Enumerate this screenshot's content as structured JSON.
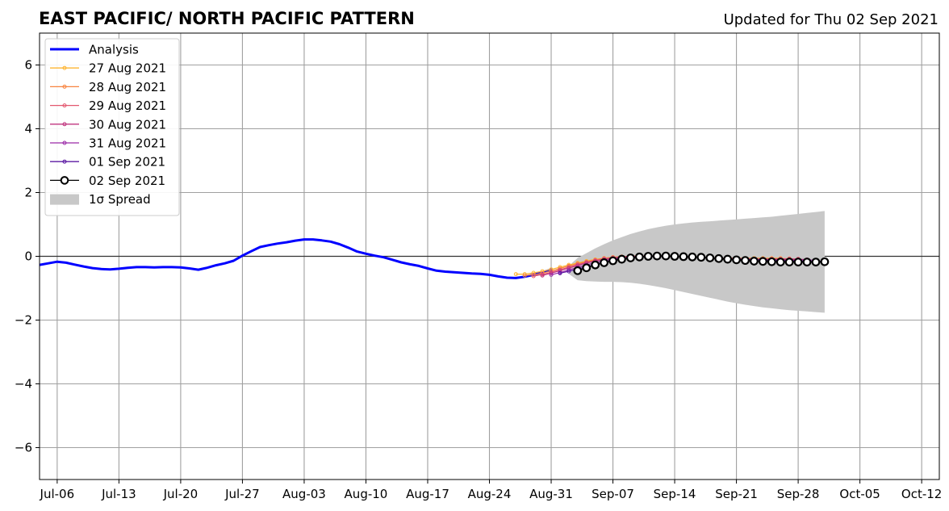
{
  "chart_data": {
    "type": "line",
    "title": "EAST PACIFIC/ NORTH PACIFIC PATTERN",
    "subtitle": "Updated for Thu 02 Sep 2021",
    "xlabel": "",
    "ylabel": "",
    "x_type": "date",
    "xlim": [
      "2021-07-04",
      "2021-10-14"
    ],
    "ylim": [
      -7,
      7
    ],
    "x_ticks": [
      {
        "date": "2021-07-06",
        "label": "Jul-06"
      },
      {
        "date": "2021-07-13",
        "label": "Jul-13"
      },
      {
        "date": "2021-07-20",
        "label": "Jul-20"
      },
      {
        "date": "2021-07-27",
        "label": "Jul-27"
      },
      {
        "date": "2021-08-03",
        "label": "Aug-03"
      },
      {
        "date": "2021-08-10",
        "label": "Aug-10"
      },
      {
        "date": "2021-08-17",
        "label": "Aug-17"
      },
      {
        "date": "2021-08-24",
        "label": "Aug-24"
      },
      {
        "date": "2021-08-31",
        "label": "Aug-31"
      },
      {
        "date": "2021-09-07",
        "label": "Sep-07"
      },
      {
        "date": "2021-09-14",
        "label": "Sep-14"
      },
      {
        "date": "2021-09-21",
        "label": "Sep-21"
      },
      {
        "date": "2021-09-28",
        "label": "Sep-28"
      },
      {
        "date": "2021-10-05",
        "label": "Oct-05"
      },
      {
        "date": "2021-10-12",
        "label": "Oct-12"
      }
    ],
    "y_ticks": [
      {
        "value": -6,
        "label": "−6"
      },
      {
        "value": -4,
        "label": "−4"
      },
      {
        "value": -2,
        "label": "−2"
      },
      {
        "value": 0,
        "label": "0"
      },
      {
        "value": 2,
        "label": "2"
      },
      {
        "value": 4,
        "label": "4"
      },
      {
        "value": 6,
        "label": "6"
      }
    ],
    "grid": true,
    "zero_line": 0,
    "legend_position": "top-left",
    "series": [
      {
        "name": "Analysis",
        "color": "#0000ff",
        "markers": false,
        "x": [
          "2021-07-04",
          "2021-07-05",
          "2021-07-06",
          "2021-07-07",
          "2021-07-08",
          "2021-07-09",
          "2021-07-10",
          "2021-07-11",
          "2021-07-12",
          "2021-07-13",
          "2021-07-14",
          "2021-07-15",
          "2021-07-16",
          "2021-07-17",
          "2021-07-18",
          "2021-07-19",
          "2021-07-20",
          "2021-07-21",
          "2021-07-22",
          "2021-07-23",
          "2021-07-24",
          "2021-07-25",
          "2021-07-26",
          "2021-07-27",
          "2021-07-28",
          "2021-07-29",
          "2021-07-30",
          "2021-07-31",
          "2021-08-01",
          "2021-08-02",
          "2021-08-03",
          "2021-08-04",
          "2021-08-05",
          "2021-08-06",
          "2021-08-07",
          "2021-08-08",
          "2021-08-09",
          "2021-08-10",
          "2021-08-11",
          "2021-08-12",
          "2021-08-13",
          "2021-08-14",
          "2021-08-15",
          "2021-08-16",
          "2021-08-17",
          "2021-08-18",
          "2021-08-19",
          "2021-08-20",
          "2021-08-21",
          "2021-08-22",
          "2021-08-23",
          "2021-08-24",
          "2021-08-25",
          "2021-08-26",
          "2021-08-27",
          "2021-08-28",
          "2021-08-29",
          "2021-08-30",
          "2021-08-31"
        ],
        "y": [
          -0.27,
          -0.22,
          -0.17,
          -0.2,
          -0.26,
          -0.32,
          -0.37,
          -0.4,
          -0.41,
          -0.39,
          -0.36,
          -0.34,
          -0.34,
          -0.35,
          -0.34,
          -0.34,
          -0.35,
          -0.38,
          -0.42,
          -0.36,
          -0.28,
          -0.22,
          -0.14,
          0.02,
          0.16,
          0.29,
          0.35,
          0.4,
          0.44,
          0.49,
          0.53,
          0.53,
          0.5,
          0.46,
          0.38,
          0.27,
          0.15,
          0.08,
          0.02,
          -0.03,
          -0.11,
          -0.19,
          -0.25,
          -0.3,
          -0.38,
          -0.45,
          -0.48,
          -0.5,
          -0.52,
          -0.54,
          -0.55,
          -0.58,
          -0.63,
          -0.67,
          -0.68,
          -0.64,
          -0.58,
          -0.5,
          -0.42
        ]
      },
      {
        "name": "27 Aug 2021",
        "color": "#fdb431",
        "markers": "small",
        "x": [
          "2021-08-27",
          "2021-08-28",
          "2021-08-29",
          "2021-08-30",
          "2021-08-31",
          "2021-09-01",
          "2021-09-02",
          "2021-09-03",
          "2021-09-04",
          "2021-09-05",
          "2021-09-06",
          "2021-09-07",
          "2021-09-08",
          "2021-09-09",
          "2021-09-10",
          "2021-09-11",
          "2021-09-12",
          "2021-09-13",
          "2021-09-14",
          "2021-09-15",
          "2021-09-16",
          "2021-09-17",
          "2021-09-18",
          "2021-09-19",
          "2021-09-20",
          "2021-09-21",
          "2021-09-22",
          "2021-09-23",
          "2021-09-24",
          "2021-09-25",
          "2021-09-26"
        ],
        "y": [
          -0.56,
          -0.56,
          -0.52,
          -0.47,
          -0.41,
          -0.34,
          -0.27,
          -0.21,
          -0.15,
          -0.1,
          -0.06,
          -0.03,
          -0.01,
          0.0,
          0.01,
          0.01,
          0.01,
          0.0,
          -0.01,
          -0.02,
          -0.03,
          -0.04,
          -0.05,
          -0.05,
          -0.06,
          -0.06,
          -0.06,
          -0.06,
          -0.06,
          -0.06,
          -0.06
        ]
      },
      {
        "name": "28 Aug 2021",
        "color": "#f8833f",
        "markers": "small",
        "x": [
          "2021-08-28",
          "2021-08-29",
          "2021-08-30",
          "2021-08-31",
          "2021-09-01",
          "2021-09-02",
          "2021-09-03",
          "2021-09-04",
          "2021-09-05",
          "2021-09-06",
          "2021-09-07",
          "2021-09-08",
          "2021-09-09",
          "2021-09-10",
          "2021-09-11",
          "2021-09-12",
          "2021-09-13",
          "2021-09-14",
          "2021-09-15",
          "2021-09-16",
          "2021-09-17",
          "2021-09-18",
          "2021-09-19",
          "2021-09-20",
          "2021-09-21",
          "2021-09-22",
          "2021-09-23",
          "2021-09-24",
          "2021-09-25",
          "2021-09-26",
          "2021-09-27"
        ],
        "y": [
          -0.6,
          -0.58,
          -0.53,
          -0.46,
          -0.38,
          -0.3,
          -0.23,
          -0.17,
          -0.11,
          -0.06,
          -0.03,
          -0.01,
          0.0,
          0.01,
          0.01,
          0.0,
          0.0,
          -0.01,
          -0.02,
          -0.03,
          -0.04,
          -0.05,
          -0.05,
          -0.06,
          -0.06,
          -0.07,
          -0.07,
          -0.07,
          -0.07,
          -0.07,
          -0.07
        ]
      },
      {
        "name": "29 Aug 2021",
        "color": "#e3586f",
        "markers": "small",
        "x": [
          "2021-08-29",
          "2021-08-30",
          "2021-08-31",
          "2021-09-01",
          "2021-09-02",
          "2021-09-03",
          "2021-09-04",
          "2021-09-05",
          "2021-09-06",
          "2021-09-07",
          "2021-09-08",
          "2021-09-09",
          "2021-09-10",
          "2021-09-11",
          "2021-09-12",
          "2021-09-13",
          "2021-09-14",
          "2021-09-15",
          "2021-09-16",
          "2021-09-17",
          "2021-09-18",
          "2021-09-19",
          "2021-09-20",
          "2021-09-21",
          "2021-09-22",
          "2021-09-23",
          "2021-09-24",
          "2021-09-25",
          "2021-09-26",
          "2021-09-27",
          "2021-09-28"
        ],
        "y": [
          -0.62,
          -0.57,
          -0.5,
          -0.42,
          -0.34,
          -0.26,
          -0.19,
          -0.13,
          -0.08,
          -0.04,
          -0.02,
          0.0,
          0.0,
          0.01,
          0.0,
          0.0,
          -0.01,
          -0.02,
          -0.03,
          -0.04,
          -0.05,
          -0.06,
          -0.06,
          -0.07,
          -0.07,
          -0.08,
          -0.08,
          -0.08,
          -0.08,
          -0.08,
          -0.08
        ]
      },
      {
        "name": "30 Aug 2021",
        "color": "#c0367f",
        "markers": "small",
        "x": [
          "2021-08-30",
          "2021-08-31",
          "2021-09-01",
          "2021-09-02",
          "2021-09-03",
          "2021-09-04",
          "2021-09-05",
          "2021-09-06",
          "2021-09-07",
          "2021-09-08",
          "2021-09-09",
          "2021-09-10",
          "2021-09-11",
          "2021-09-12",
          "2021-09-13",
          "2021-09-14",
          "2021-09-15",
          "2021-09-16",
          "2021-09-17",
          "2021-09-18",
          "2021-09-19",
          "2021-09-20",
          "2021-09-21",
          "2021-09-22",
          "2021-09-23",
          "2021-09-24",
          "2021-09-25",
          "2021-09-26",
          "2021-09-27",
          "2021-09-28",
          "2021-09-29"
        ],
        "y": [
          -0.6,
          -0.53,
          -0.45,
          -0.37,
          -0.29,
          -0.21,
          -0.15,
          -0.1,
          -0.06,
          -0.03,
          -0.01,
          0.0,
          0.0,
          0.0,
          0.0,
          -0.01,
          -0.02,
          -0.03,
          -0.04,
          -0.05,
          -0.06,
          -0.07,
          -0.08,
          -0.08,
          -0.09,
          -0.09,
          -0.1,
          -0.1,
          -0.1,
          -0.1,
          -0.1
        ]
      },
      {
        "name": "31 Aug 2021",
        "color": "#9a29a7",
        "markers": "small",
        "x": [
          "2021-08-31",
          "2021-09-01",
          "2021-09-02",
          "2021-09-03",
          "2021-09-04",
          "2021-09-05",
          "2021-09-06",
          "2021-09-07",
          "2021-09-08",
          "2021-09-09",
          "2021-09-10",
          "2021-09-11",
          "2021-09-12",
          "2021-09-13",
          "2021-09-14",
          "2021-09-15",
          "2021-09-16",
          "2021-09-17",
          "2021-09-18",
          "2021-09-19",
          "2021-09-20",
          "2021-09-21",
          "2021-09-22",
          "2021-09-23",
          "2021-09-24",
          "2021-09-25",
          "2021-09-26",
          "2021-09-27",
          "2021-09-28",
          "2021-09-29",
          "2021-09-30"
        ],
        "y": [
          -0.58,
          -0.51,
          -0.43,
          -0.35,
          -0.27,
          -0.2,
          -0.14,
          -0.09,
          -0.05,
          -0.02,
          -0.01,
          0.0,
          0.0,
          0.0,
          -0.01,
          -0.02,
          -0.03,
          -0.04,
          -0.05,
          -0.06,
          -0.07,
          -0.08,
          -0.09,
          -0.1,
          -0.11,
          -0.11,
          -0.12,
          -0.12,
          -0.12,
          -0.12,
          -0.12
        ]
      },
      {
        "name": "01 Sep 2021",
        "color": "#5c1aa3",
        "markers": "small",
        "x": [
          "2021-09-01",
          "2021-09-02",
          "2021-09-03",
          "2021-09-04",
          "2021-09-05",
          "2021-09-06",
          "2021-09-07",
          "2021-09-08",
          "2021-09-09",
          "2021-09-10",
          "2021-09-11",
          "2021-09-12",
          "2021-09-13",
          "2021-09-14",
          "2021-09-15",
          "2021-09-16",
          "2021-09-17",
          "2021-09-18",
          "2021-09-19",
          "2021-09-20",
          "2021-09-21",
          "2021-09-22",
          "2021-09-23",
          "2021-09-24",
          "2021-09-25",
          "2021-09-26",
          "2021-09-27",
          "2021-09-28",
          "2021-09-29",
          "2021-09-30",
          "2021-10-01"
        ],
        "y": [
          -0.53,
          -0.47,
          -0.4,
          -0.33,
          -0.26,
          -0.19,
          -0.13,
          -0.08,
          -0.05,
          -0.02,
          -0.01,
          0.0,
          0.0,
          -0.01,
          -0.02,
          -0.03,
          -0.04,
          -0.05,
          -0.06,
          -0.07,
          -0.09,
          -0.1,
          -0.11,
          -0.12,
          -0.13,
          -0.14,
          -0.15,
          -0.15,
          -0.16,
          -0.16,
          -0.16
        ]
      },
      {
        "name": "02 Sep 2021",
        "color": "#000000",
        "markers": "large",
        "x": [
          "2021-09-03",
          "2021-09-04",
          "2021-09-05",
          "2021-09-06",
          "2021-09-07",
          "2021-09-08",
          "2021-09-09",
          "2021-09-10",
          "2021-09-11",
          "2021-09-12",
          "2021-09-13",
          "2021-09-14",
          "2021-09-15",
          "2021-09-16",
          "2021-09-17",
          "2021-09-18",
          "2021-09-19",
          "2021-09-20",
          "2021-09-21",
          "2021-09-22",
          "2021-09-23",
          "2021-09-24",
          "2021-09-25",
          "2021-09-26",
          "2021-09-27",
          "2021-09-28",
          "2021-09-29",
          "2021-09-30",
          "2021-10-01"
        ],
        "y": [
          -0.45,
          -0.36,
          -0.27,
          -0.2,
          -0.14,
          -0.09,
          -0.05,
          -0.02,
          0.0,
          0.01,
          0.01,
          0.0,
          -0.01,
          -0.02,
          -0.03,
          -0.05,
          -0.07,
          -0.09,
          -0.11,
          -0.13,
          -0.15,
          -0.16,
          -0.17,
          -0.18,
          -0.18,
          -0.18,
          -0.18,
          -0.18,
          -0.17
        ]
      }
    ],
    "spread": {
      "name": "1σ Spread",
      "color": "#c8c8c8",
      "x": [
        "2021-09-02",
        "2021-09-03",
        "2021-09-04",
        "2021-09-05",
        "2021-09-06",
        "2021-09-07",
        "2021-09-08",
        "2021-09-09",
        "2021-09-10",
        "2021-09-11",
        "2021-09-12",
        "2021-09-13",
        "2021-09-14",
        "2021-09-15",
        "2021-09-16",
        "2021-09-17",
        "2021-09-18",
        "2021-09-19",
        "2021-09-20",
        "2021-09-21",
        "2021-09-22",
        "2021-09-23",
        "2021-09-24",
        "2021-09-25",
        "2021-09-26",
        "2021-09-27",
        "2021-09-28",
        "2021-09-29",
        "2021-09-30",
        "2021-10-01"
      ],
      "upper": [
        -0.3,
        -0.05,
        0.1,
        0.25,
        0.38,
        0.5,
        0.6,
        0.7,
        0.78,
        0.85,
        0.91,
        0.96,
        1.0,
        1.03,
        1.06,
        1.08,
        1.1,
        1.12,
        1.14,
        1.16,
        1.18,
        1.2,
        1.22,
        1.24,
        1.27,
        1.3,
        1.33,
        1.36,
        1.39,
        1.42
      ],
      "lower": [
        -0.55,
        -0.75,
        -0.78,
        -0.79,
        -0.8,
        -0.8,
        -0.81,
        -0.83,
        -0.86,
        -0.9,
        -0.95,
        -1.0,
        -1.06,
        -1.12,
        -1.18,
        -1.24,
        -1.3,
        -1.36,
        -1.42,
        -1.47,
        -1.52,
        -1.56,
        -1.6,
        -1.63,
        -1.66,
        -1.69,
        -1.71,
        -1.73,
        -1.75,
        -1.77
      ]
    }
  }
}
